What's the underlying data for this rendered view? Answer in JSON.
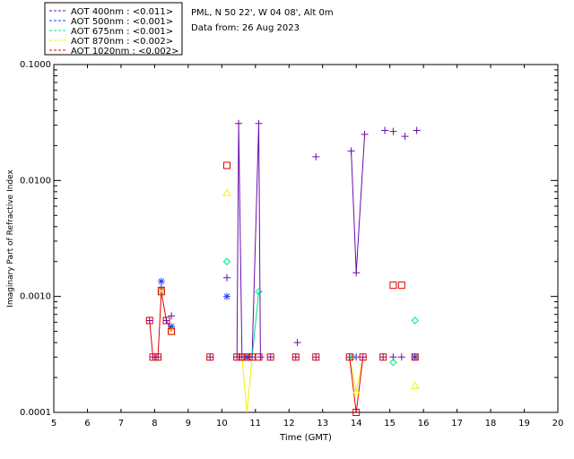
{
  "chart_data": {
    "type": "scatter",
    "title": "",
    "xlabel": "Time (GMT)",
    "ylabel": "Imaginary Part of Refractive Index",
    "xlim": [
      5,
      20
    ],
    "ylim": [
      0.0001,
      0.1
    ],
    "yscale": "log",
    "x_ticks": [
      "5",
      "6",
      "7",
      "8",
      "9",
      "10",
      "11",
      "12",
      "13",
      "14",
      "15",
      "16",
      "17",
      "18",
      "19",
      "20"
    ],
    "y_ticks": [
      "0.0001",
      "0.0010",
      "0.0100",
      "0.1000"
    ],
    "info": [
      "PML, N 50 22', W 04 08', Alt 0m",
      "Data from: 26 Aug 2023"
    ],
    "legend": [
      {
        "label": "AOT  400nm : <0.011>",
        "color": "#6a0dad"
      },
      {
        "label": "AOT  500nm : <0.001>",
        "color": "#1f3fff"
      },
      {
        "label": "AOT  675nm : <0.001>",
        "color": "#00e08a"
      },
      {
        "label": "AOT  870nm : <0.002>",
        "color": "#f2f200"
      },
      {
        "label": "AOT 1020nm : <0.002>",
        "color": "#e00000"
      }
    ],
    "series": [
      {
        "name": "400nm",
        "color": "#6a0dad",
        "marker": "plus",
        "points": [
          [
            7.85,
            0.00062
          ],
          [
            7.95,
            0.0003
          ],
          [
            8.1,
            0.0003
          ],
          [
            8.2,
            0.0012
          ],
          [
            8.35,
            0.00062
          ],
          [
            8.5,
            0.00068
          ],
          [
            9.65,
            0.0003
          ],
          [
            10.15,
            0.00145
          ],
          [
            10.45,
            0.0003
          ],
          [
            10.5,
            0.031
          ],
          [
            10.6,
            0.0003
          ],
          [
            10.8,
            0.0003
          ],
          [
            10.9,
            0.0003
          ],
          [
            11.1,
            0.031
          ],
          [
            11.15,
            0.0003
          ],
          [
            11.45,
            0.0003
          ],
          [
            12.2,
            0.0003
          ],
          [
            12.25,
            0.0004
          ],
          [
            12.8,
            0.0003
          ],
          [
            12.8,
            0.016
          ],
          [
            13.8,
            0.0003
          ],
          [
            13.85,
            0.018
          ],
          [
            14.0,
            0.0016
          ],
          [
            14.0,
            0.0003
          ],
          [
            14.2,
            0.0003
          ],
          [
            14.25,
            0.025
          ],
          [
            14.8,
            0.0003
          ],
          [
            14.85,
            0.027
          ],
          [
            15.1,
            0.0003
          ],
          [
            15.1,
            0.0265
          ],
          [
            15.35,
            0.0003
          ],
          [
            15.45,
            0.024
          ],
          [
            15.75,
            0.0003
          ],
          [
            15.8,
            0.027
          ]
        ],
        "lines": [
          [
            [
              10.45,
              0.0003
            ],
            [
              10.5,
              0.031
            ],
            [
              10.6,
              0.0003
            ]
          ],
          [
            [
              10.9,
              0.0003
            ],
            [
              11.1,
              0.031
            ],
            [
              11.15,
              0.0003
            ]
          ],
          [
            [
              13.85,
              0.018
            ],
            [
              14.0,
              0.0016
            ],
            [
              14.25,
              0.025
            ]
          ]
        ]
      },
      {
        "name": "500nm",
        "color": "#1f3fff",
        "marker": "star",
        "points": [
          [
            8.2,
            0.00135
          ],
          [
            8.5,
            0.00055
          ],
          [
            10.15,
            0.001
          ],
          [
            10.75,
            0.0003
          ],
          [
            15.75,
            0.0003
          ]
        ],
        "lines": []
      },
      {
        "name": "675nm",
        "color": "#00e08a",
        "marker": "diamond",
        "points": [
          [
            8.2,
            0.0011
          ],
          [
            10.15,
            0.002
          ],
          [
            11.1,
            0.0011
          ],
          [
            13.9,
            0.0003
          ],
          [
            15.1,
            0.00027
          ],
          [
            15.75,
            0.00062
          ]
        ],
        "lines": [
          [
            [
              10.9,
              0.0003
            ],
            [
              11.1,
              0.0011
            ]
          ]
        ]
      },
      {
        "name": "870nm",
        "color": "#f2f200",
        "marker": "triangle",
        "points": [
          [
            8.2,
            0.0011
          ],
          [
            8.5,
            0.0005
          ],
          [
            10.15,
            0.0078
          ],
          [
            14.0,
            0.00015
          ],
          [
            15.75,
            0.00017
          ]
        ],
        "lines": [
          [
            [
              10.6,
              0.0003
            ],
            [
              10.75,
              0.0001
            ],
            [
              10.9,
              0.0003
            ]
          ],
          [
            [
              13.8,
              0.0003
            ],
            [
              14.0,
              0.00015
            ],
            [
              14.2,
              0.0003
            ]
          ]
        ]
      },
      {
        "name": "1020nm",
        "color": "#e00000",
        "marker": "square",
        "points": [
          [
            7.85,
            0.00062
          ],
          [
            7.95,
            0.0003
          ],
          [
            8.1,
            0.0003
          ],
          [
            8.2,
            0.0011
          ],
          [
            8.35,
            0.00062
          ],
          [
            8.5,
            0.0005
          ],
          [
            9.65,
            0.0003
          ],
          [
            10.15,
            0.0135
          ],
          [
            10.45,
            0.0003
          ],
          [
            10.6,
            0.0003
          ],
          [
            10.75,
            0.0003
          ],
          [
            10.9,
            0.0003
          ],
          [
            11.1,
            0.0003
          ],
          [
            11.45,
            0.0003
          ],
          [
            12.2,
            0.0003
          ],
          [
            12.8,
            0.0003
          ],
          [
            13.8,
            0.0003
          ],
          [
            14.0,
            0.0001
          ],
          [
            14.2,
            0.0003
          ],
          [
            14.8,
            0.0003
          ],
          [
            15.1,
            0.00125
          ],
          [
            15.35,
            0.00125
          ],
          [
            15.75,
            0.0003
          ]
        ],
        "lines": [
          [
            [
              7.85,
              0.00062
            ],
            [
              7.95,
              0.0003
            ],
            [
              8.1,
              0.0003
            ],
            [
              8.2,
              0.0011
            ],
            [
              8.35,
              0.00062
            ],
            [
              8.5,
              0.0005
            ]
          ],
          [
            [
              13.8,
              0.0003
            ],
            [
              14.0,
              0.0001
            ],
            [
              14.2,
              0.0003
            ]
          ]
        ]
      }
    ]
  }
}
